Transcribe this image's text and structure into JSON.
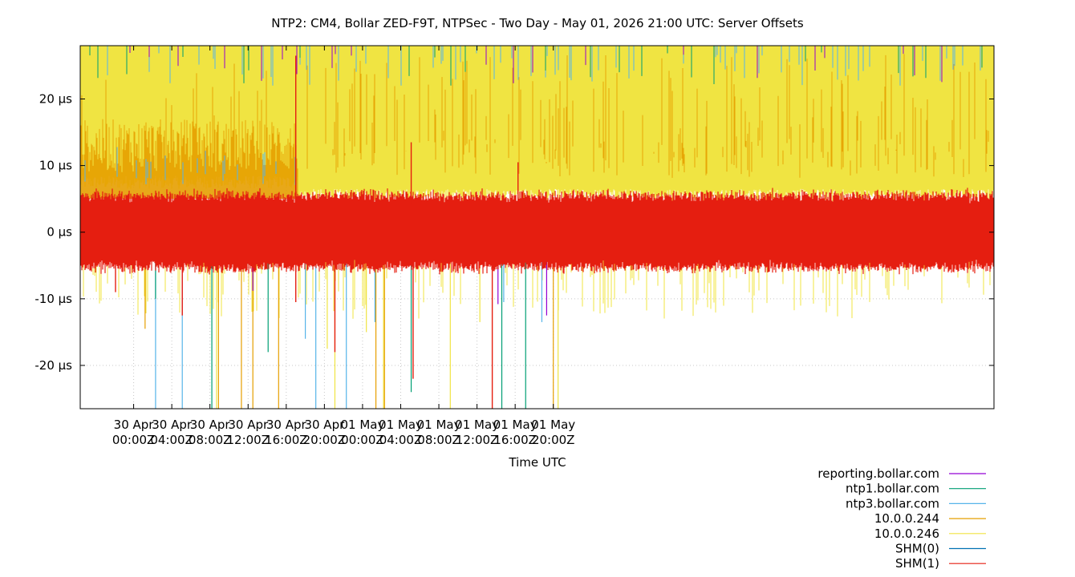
{
  "chart_data": {
    "type": "line",
    "title": "NTP2: CM4, Bollar ZED-F9T, NTPSec - Two Day - May 01, 2026 21:00 UTC: Server Offsets",
    "xlabel": "Time UTC",
    "ylabel": "",
    "ylim": [
      -26.5,
      28
    ],
    "xlim_hours": [
      -5.6,
      90.2
    ],
    "grid": true,
    "legend_position": "bottom-right",
    "y_ticks": [
      {
        "value": 20,
        "label": "20 µs"
      },
      {
        "value": 10,
        "label": "10 µs"
      },
      {
        "value": 0,
        "label": "0 µs"
      },
      {
        "value": -10,
        "label": "-10 µs"
      },
      {
        "value": -20,
        "label": "-20 µs"
      }
    ],
    "x_ticks": [
      {
        "hour": 0,
        "line1": "30 Apr",
        "line2": "00:00Z"
      },
      {
        "hour": 4,
        "line1": "30 Apr",
        "line2": "04:00Z"
      },
      {
        "hour": 8,
        "line1": "30 Apr",
        "line2": "08:00Z"
      },
      {
        "hour": 12,
        "line1": "30 Apr",
        "line2": "12:00Z"
      },
      {
        "hour": 16,
        "line1": "30 Apr",
        "line2": "16:00Z"
      },
      {
        "hour": 20,
        "line1": "30 Apr",
        "line2": "20:00Z"
      },
      {
        "hour": 24,
        "line1": "01 May",
        "line2": "00:00Z"
      },
      {
        "hour": 28,
        "line1": "01 May",
        "line2": "04:00Z"
      },
      {
        "hour": 32,
        "line1": "01 May",
        "line2": "08:00Z"
      },
      {
        "hour": 36,
        "line1": "01 May",
        "line2": "12:00Z"
      },
      {
        "hour": 40,
        "line1": "01 May",
        "line2": "16:00Z"
      },
      {
        "hour": 44,
        "line1": "01 May",
        "line2": "20:00Z"
      }
    ],
    "series": [
      {
        "name": "reporting.bollar.com",
        "color": "#9400d3",
        "spikes": [
          {
            "x": 43.3,
            "y": -12.5
          },
          {
            "x": 38.2,
            "y": -10.8
          },
          {
            "x": 12.5,
            "y": -8.8
          }
        ]
      },
      {
        "name": "ntp1.bollar.com",
        "color": "#009e73",
        "spikes": [
          {
            "x": 8.2,
            "y": -26.5
          },
          {
            "x": 14.1,
            "y": -18.0
          },
          {
            "x": 29.1,
            "y": -24.0
          },
          {
            "x": 38.6,
            "y": -26.5
          },
          {
            "x": 41.1,
            "y": -26.5
          },
          {
            "x": 2.3,
            "y": -10.0
          }
        ]
      },
      {
        "name": "ntp3.bollar.com",
        "color": "#56b4e9",
        "spikes": [
          {
            "x": 2.3,
            "y": -26.5
          },
          {
            "x": 5.1,
            "y": -26.5
          },
          {
            "x": 18.0,
            "y": -16.0
          },
          {
            "x": 19.1,
            "y": -26.5
          },
          {
            "x": 22.3,
            "y": -26.5
          },
          {
            "x": 25.3,
            "y": -13.5
          },
          {
            "x": 38.8,
            "y": -10.5
          },
          {
            "x": 42.8,
            "y": -13.5
          }
        ]
      },
      {
        "name": "10.0.0.244",
        "color": "#e69f00",
        "spikes": [
          {
            "x": 8.9,
            "y": -26.5
          },
          {
            "x": 11.3,
            "y": -26.5
          },
          {
            "x": 12.5,
            "y": -26.5
          },
          {
            "x": 15.2,
            "y": -26.5
          },
          {
            "x": 25.4,
            "y": -26.5
          },
          {
            "x": 26.3,
            "y": -26.5
          },
          {
            "x": 44.0,
            "y": -26.5
          },
          {
            "x": 1.2,
            "y": -14.5
          }
        ]
      },
      {
        "name": "10.0.0.246",
        "color": "#f0e442",
        "spikes": [
          {
            "x": 8.7,
            "y": -26.5
          },
          {
            "x": 21.1,
            "y": -26.5
          },
          {
            "x": 26.2,
            "y": -26.5
          },
          {
            "x": 33.2,
            "y": -26.5
          },
          {
            "x": 44.5,
            "y": -26.5
          },
          {
            "x": 20.3,
            "y": -17.5
          },
          {
            "x": 36.3,
            "y": -13.5
          },
          {
            "x": 24.4,
            "y": -15.0
          }
        ]
      },
      {
        "name": "SHM(0)",
        "color": "#0072b2",
        "spikes": []
      },
      {
        "name": "SHM(1)",
        "color": "#e51e10",
        "band": [
          -5,
          5
        ],
        "spikes": [
          {
            "x": 37.6,
            "y": -26.5
          },
          {
            "x": 29.3,
            "y": -22.0
          },
          {
            "x": 21.1,
            "y": -18.0
          },
          {
            "x": 5.1,
            "y": -12.5
          },
          {
            "x": 17.0,
            "y": -10.5
          },
          {
            "x": 17.0,
            "y": 26.5
          },
          {
            "x": 40.3,
            "y": 10.5
          },
          {
            "x": 29.1,
            "y": 13.5
          },
          {
            "x": -1.9,
            "y": -9.0
          }
        ]
      }
    ]
  }
}
